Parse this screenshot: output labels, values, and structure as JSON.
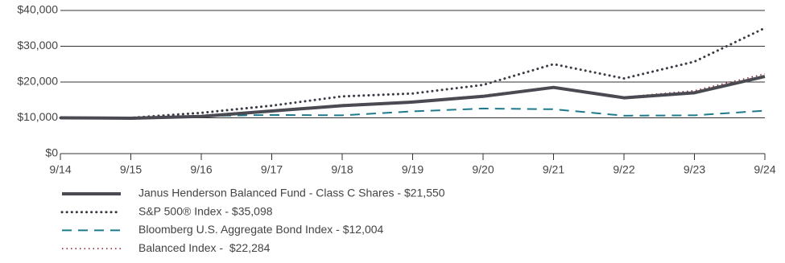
{
  "chart_data": {
    "type": "line",
    "categories": [
      "9/14",
      "9/15",
      "9/16",
      "9/17",
      "9/18",
      "9/19",
      "9/20",
      "9/21",
      "9/22",
      "9/23",
      "9/24"
    ],
    "series": [
      {
        "name": "Janus Henderson Balanced Fund - Class C Shares - $21,550",
        "color": "#4a4a52",
        "line_style": "solid",
        "line_width": 4,
        "values": [
          10000,
          9900,
          10400,
          11900,
          13400,
          14400,
          16000,
          18500,
          15600,
          17000,
          21550
        ]
      },
      {
        "name": "S&P 500® Index - $35,098",
        "color": "#3a3a44",
        "line_style": "dotted",
        "line_width": 3,
        "values": [
          10000,
          10000,
          11400,
          13400,
          16000,
          16800,
          19200,
          25000,
          21000,
          25700,
          35098
        ]
      },
      {
        "name": "Bloomberg U.S. Aggregate Bond Index - $12,004",
        "color": "#1f7a8c",
        "line_style": "dashed",
        "line_width": 2,
        "values": [
          10000,
          10000,
          10500,
          10800,
          10700,
          11800,
          12600,
          12400,
          10600,
          10700,
          12004
        ]
      },
      {
        "name": "Balanced Index -  $22,284",
        "color": "#8b1a2a",
        "line_style": "fine-dotted",
        "line_width": 1.5,
        "values": [
          10000,
          10000,
          10700,
          12000,
          13700,
          14600,
          16300,
          18700,
          15800,
          17600,
          22284
        ]
      }
    ],
    "ylim": [
      0,
      40000
    ],
    "yticks": [
      {
        "value": 0,
        "label": "$0"
      },
      {
        "value": 10000,
        "label": "$10,000"
      },
      {
        "value": 20000,
        "label": "$20,000"
      },
      {
        "value": 30000,
        "label": "$30,000"
      },
      {
        "value": 40000,
        "label": "$40,000"
      }
    ],
    "grid": true
  }
}
